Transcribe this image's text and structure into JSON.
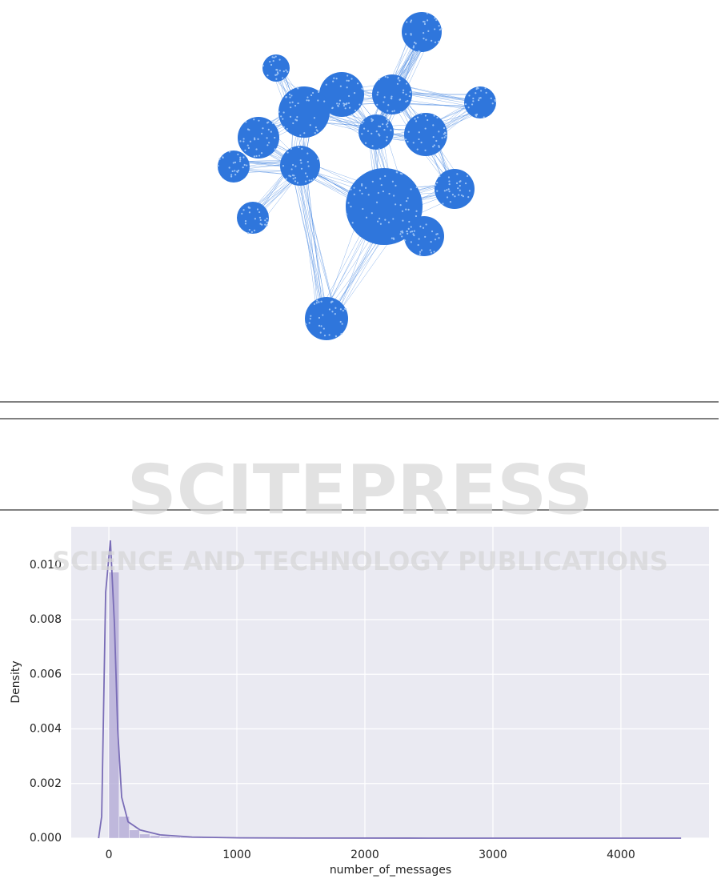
{
  "watermark": {
    "title": "SCITEPRESS",
    "subtitle": "SCIENCE AND TECHNOLOGY PUBLICATIONS"
  },
  "chart_data": {
    "type": "histogram",
    "xlabel": "number_of_messages",
    "ylabel": "Density",
    "bins": [
      0,
      80,
      160,
      240,
      320,
      400,
      480,
      560,
      640,
      720,
      800,
      880,
      960,
      1040,
      1120,
      1200,
      1280,
      1360,
      1440,
      1520,
      1600,
      1680,
      1760,
      1840,
      1920,
      2000,
      2080,
      2160,
      2240,
      2320,
      2400,
      2480,
      2560,
      2640,
      2720,
      2800,
      2880,
      2960,
      3040,
      3120,
      3200,
      3280,
      3360,
      3440,
      3520,
      3600,
      3680,
      3760,
      3840,
      3920,
      4000,
      4080,
      4160,
      4240,
      4320,
      4400,
      4480
    ],
    "values": [
      0.00974,
      0.0008,
      0.0003,
      0.00015,
      0.0001,
      6e-05,
      4e-05,
      3e-05,
      2e-05,
      2e-05,
      1e-05,
      1e-05,
      1e-05,
      1e-05,
      5e-06,
      5e-06,
      3e-06,
      3e-06,
      2e-06,
      2e-06,
      0,
      0,
      0,
      0,
      0,
      0,
      0,
      0,
      0,
      0,
      0,
      0,
      0,
      0,
      0,
      0,
      0,
      0,
      0,
      0,
      0,
      0,
      0,
      0,
      0,
      0,
      0,
      0,
      0,
      0,
      0,
      0,
      0,
      0,
      0,
      2e-06
    ],
    "color": "#b4abd6",
    "kde": {
      "color": "#7a6db7",
      "x": [
        -80,
        -56,
        -25,
        12,
        44,
        69,
        100,
        150,
        244,
        400,
        650,
        1025,
        1650,
        2500,
        3500,
        4470
      ],
      "values": [
        0,
        0.0008,
        0.009,
        0.0109,
        0.0078,
        0.004,
        0.0015,
        0.0006,
        0.0003,
        0.00012,
        4e-05,
        1e-05,
        3e-06,
        1e-06,
        5e-07,
        0
      ]
    },
    "xlim": [
      -294,
      4688
    ],
    "ylim": [
      0,
      0.0114
    ],
    "xticks": [
      0,
      1000,
      2000,
      3000,
      4000
    ],
    "yticks": [
      {
        "value": 0,
        "label": "0.000"
      },
      {
        "value": 0.002,
        "label": "0.002"
      },
      {
        "value": 0.004,
        "label": "0.004"
      },
      {
        "value": 0.006,
        "label": "0.006"
      },
      {
        "value": 0.008,
        "label": "0.008"
      },
      {
        "value": 0.01,
        "label": "0.010"
      }
    ],
    "grid": true,
    "background": "#eaeaf2"
  }
}
